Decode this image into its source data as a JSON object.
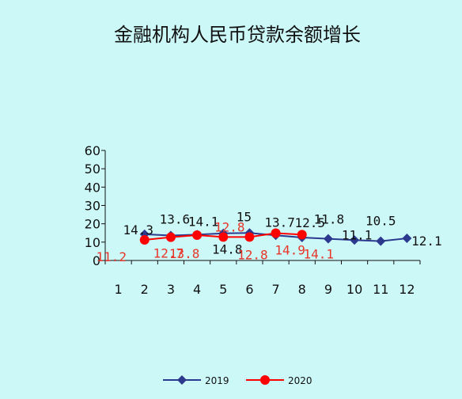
{
  "chart_data": {
    "type": "line",
    "title": "金融机构人民币贷款余额增长",
    "xlabel": "",
    "ylabel": "",
    "ylim": [
      0,
      60
    ],
    "yticks": [
      0,
      10,
      20,
      30,
      40,
      50,
      60
    ],
    "categories": [
      "1",
      "2",
      "3",
      "4",
      "5",
      "6",
      "7",
      "8",
      "9",
      "10",
      "11",
      "12"
    ],
    "grid": false,
    "legend_position": "bottom",
    "series": [
      {
        "name": "2019",
        "color": "#2b3a8f",
        "marker": "diamond",
        "values": [
          null,
          14.3,
          13.6,
          14.1,
          14.8,
          15,
          13.7,
          12.5,
          11.8,
          11.1,
          10.5,
          12.1
        ],
        "labels": [
          "",
          "14.3",
          "13.6",
          "14.1",
          "14.8",
          "15",
          "13.7",
          "12.5",
          "11.8",
          "11.1",
          "10.5",
          "12.1"
        ]
      },
      {
        "name": "2020",
        "color": "#ff0000",
        "label_color": "#e8352a",
        "marker": "circle",
        "values": [
          null,
          11.2,
          12.7,
          13.8,
          12.8,
          12.8,
          14.9,
          14.1,
          null,
          null,
          null,
          null
        ],
        "labels": [
          "",
          "11.2",
          "12.7",
          "13.8",
          "12.8",
          "12.8",
          "14.9",
          "14.1",
          "",
          "",
          "",
          ""
        ]
      }
    ]
  }
}
